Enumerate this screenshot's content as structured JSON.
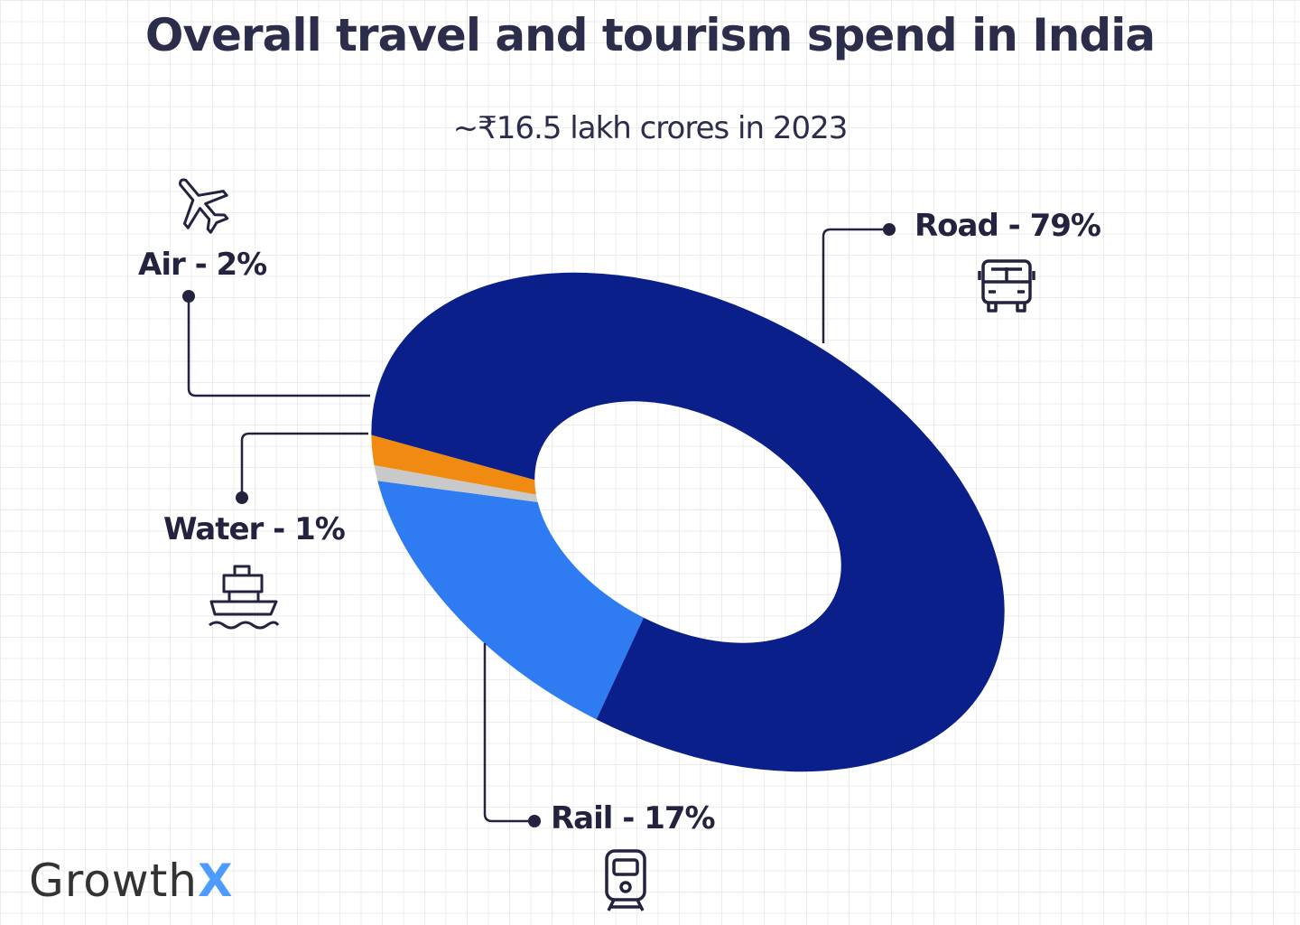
{
  "chart_data": {
    "type": "pie",
    "style": "donut",
    "title": "Overall travel and tourism spend in India",
    "subtitle": "~₹16.5 lakh crores in 2023",
    "unit": "%",
    "slices": [
      {
        "label": "Rail - 17%",
        "category": "Rail",
        "value": 17,
        "color": "#2f7bf2",
        "icon": "train-icon"
      },
      {
        "label": "Water - 1%",
        "category": "Water",
        "value": 1,
        "color": "#c9c9c9",
        "icon": "ship-icon"
      },
      {
        "label": "Air - 2%",
        "category": "Air",
        "value": 2,
        "color": "#f08a10",
        "icon": "airplane-icon"
      },
      {
        "label": "Road - 79%",
        "category": "Road",
        "value": 79,
        "color": "#0b1f8a",
        "icon": "bus-icon"
      }
    ]
  },
  "logo": {
    "text": "Growth",
    "accent": "X",
    "accent_color": "#4d9bff"
  }
}
